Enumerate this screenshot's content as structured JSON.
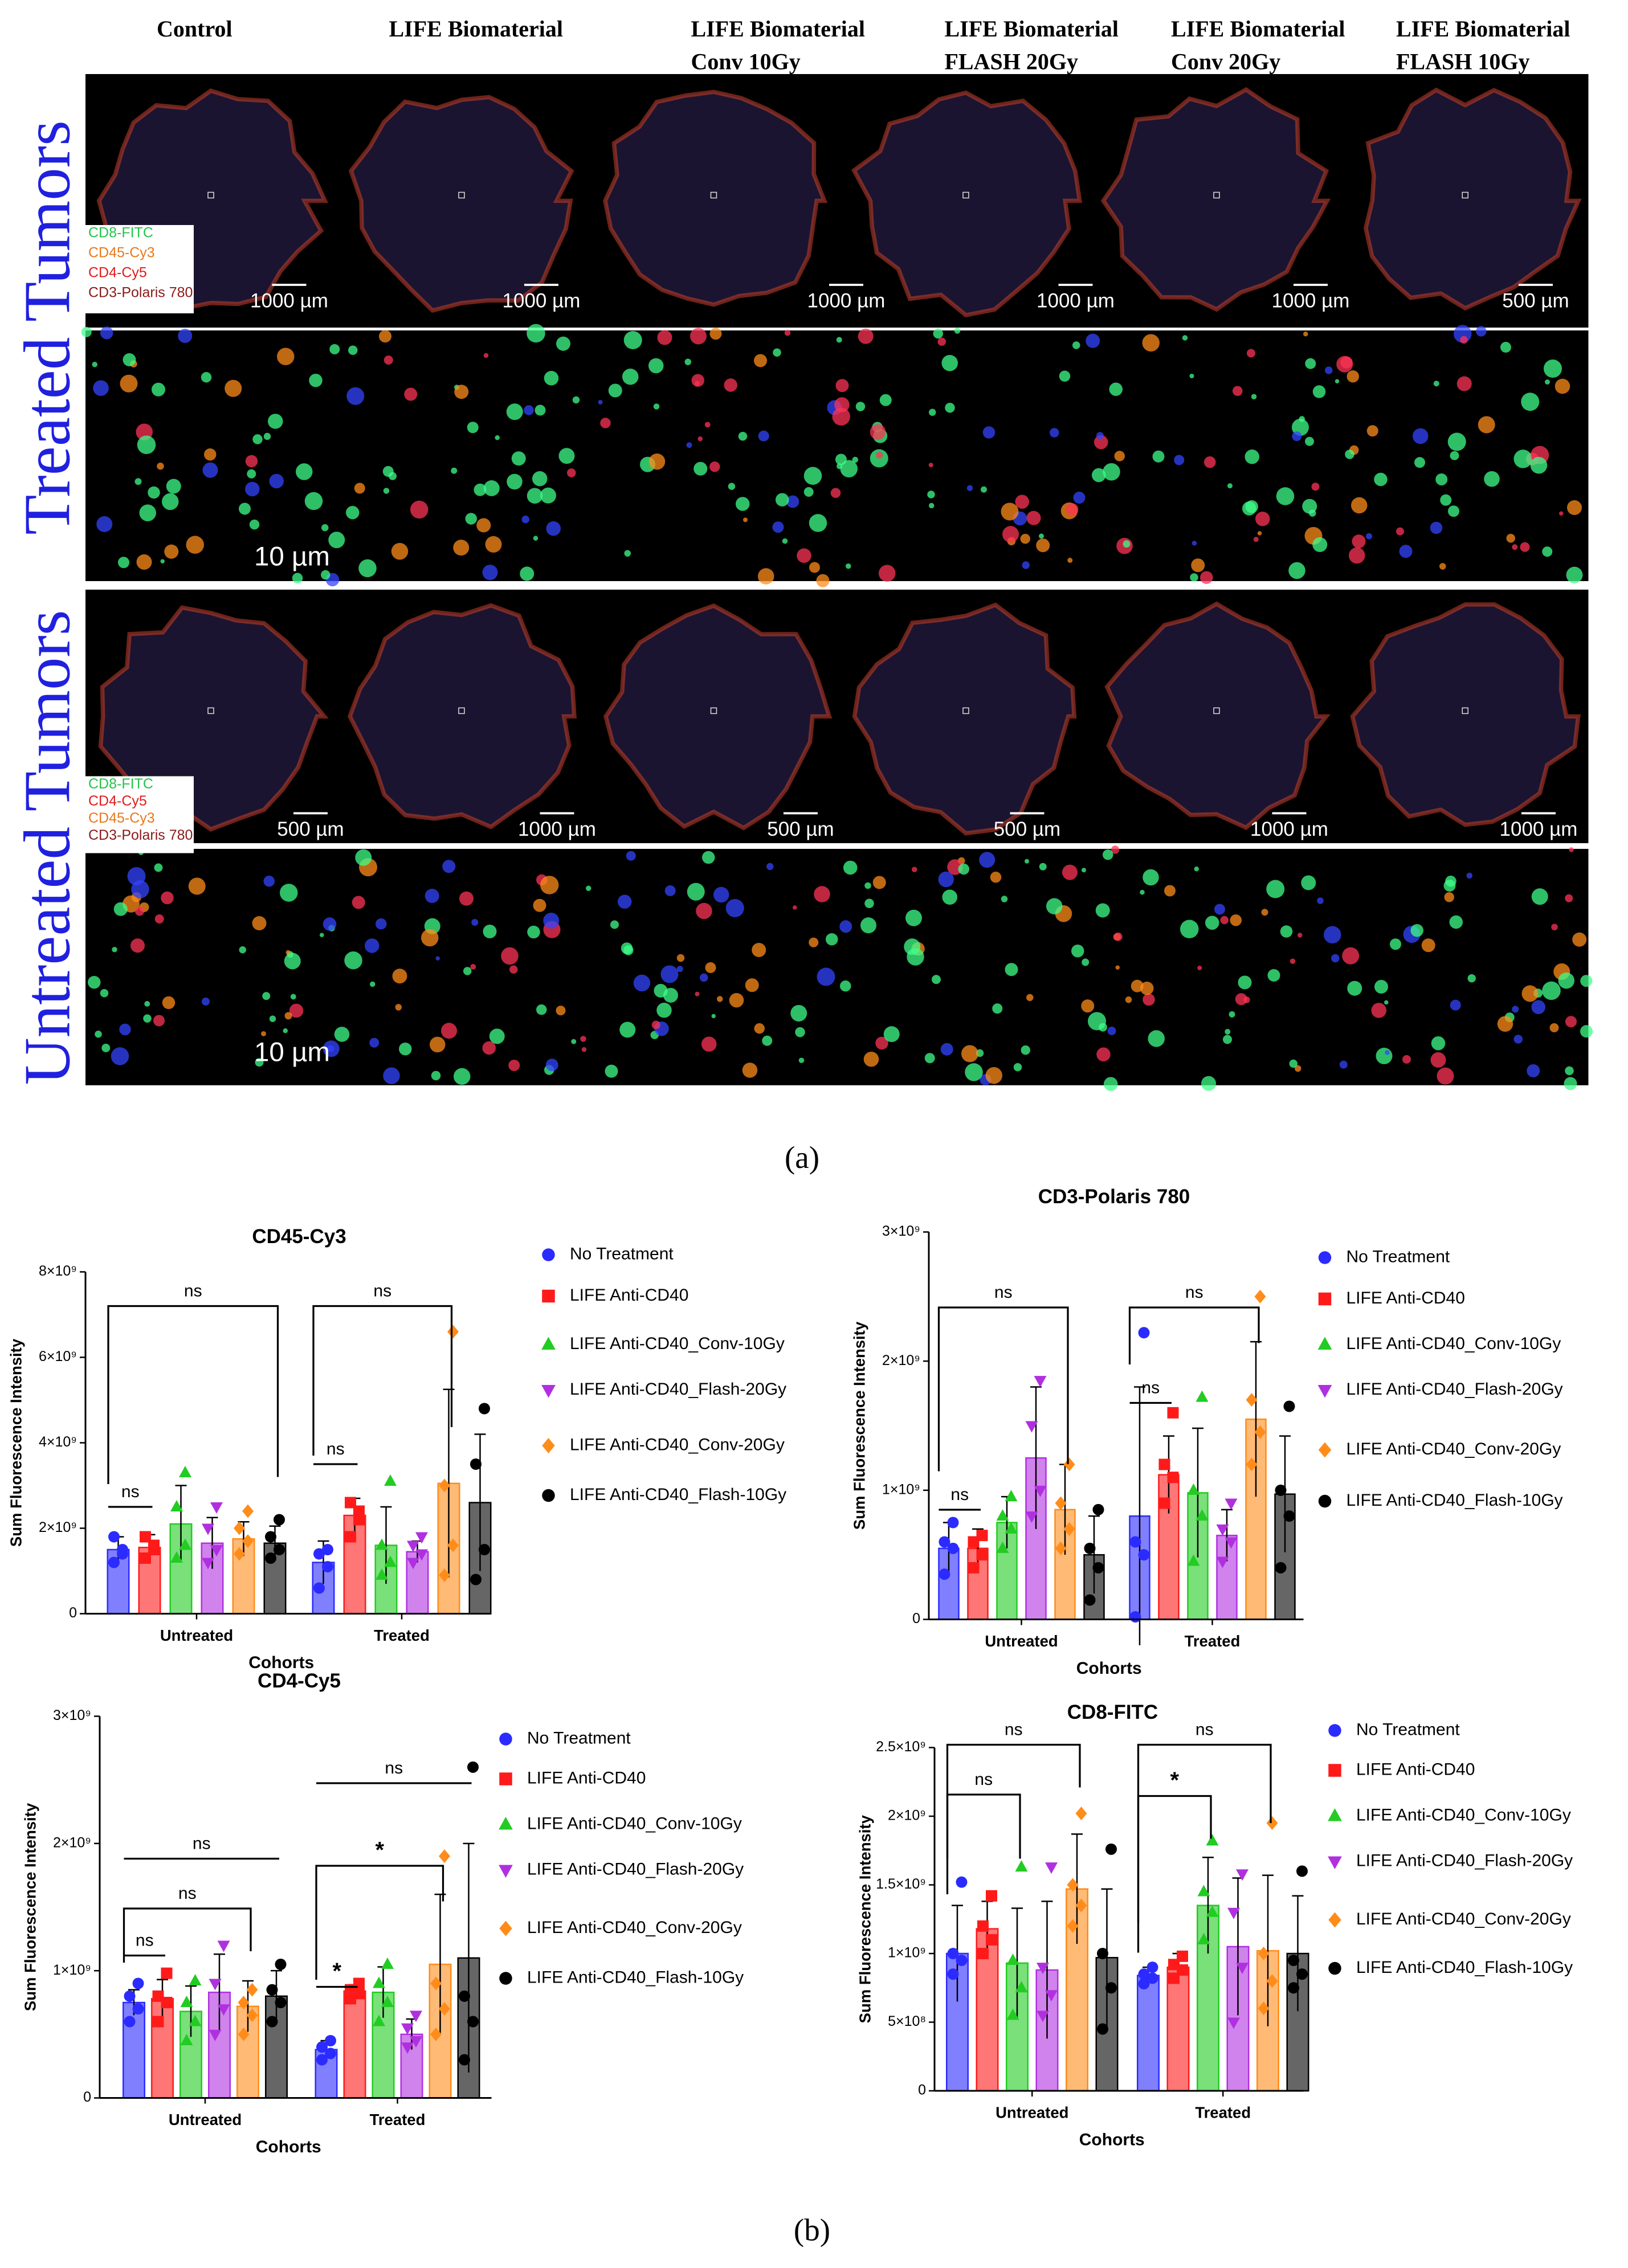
{
  "figure": {
    "columns": [
      [
        "Control"
      ],
      [
        "LIFE Biomaterial"
      ],
      [
        "LIFE Biomaterial",
        "Conv 10Gy"
      ],
      [
        "LIFE Biomaterial",
        "FLASH 20Gy"
      ],
      [
        "LIFE Biomaterial",
        "Conv 20Gy"
      ],
      [
        "LIFE Biomaterial",
        "FLASH 10Gy"
      ]
    ],
    "treated": {
      "label": "Treated Tumors",
      "scale_bars": [
        "1000 µm",
        "1000 µm",
        "1000 µm",
        "1000 µm",
        "1000 µm",
        "500 µm"
      ],
      "zoom_scale": "10 µm",
      "legend": [
        {
          "text": "CD8-FITC",
          "color": "#22c44a"
        },
        {
          "text": "CD45-Cy3",
          "color": "#e8791c"
        },
        {
          "text": "CD4-Cy5",
          "color": "#e01b1b"
        },
        {
          "text": "CD3-Polaris 780",
          "color": "#8b1a1a"
        }
      ]
    },
    "untreated": {
      "label": "Untreated Tumors",
      "scale_bars": [
        "500 µm",
        "1000 µm",
        "500 µm",
        "500 µm",
        "1000 µm",
        "1000 µm"
      ],
      "zoom_scale": "10 µm",
      "legend": [
        {
          "text": "CD8-FITC",
          "color": "#22c44a"
        },
        {
          "text": "CD4-Cy5",
          "color": "#e01b1b"
        },
        {
          "text": "CD45-Cy3",
          "color": "#e8791c"
        },
        {
          "text": "CD3-Polaris 780",
          "color": "#8b1a1a"
        }
      ]
    },
    "panel_a": "(a)",
    "panel_b": "(b)"
  },
  "chart_data": [
    {
      "type": "bar",
      "title": "CD45-Cy3",
      "y_label": "Sum Fluorescence Intensity",
      "x_label": "Cohorts",
      "categories": [
        "Untreated",
        "Treated"
      ],
      "ylim": [
        0,
        8000000000.0
      ],
      "yticks": [
        0,
        {
          "value": 2000000000.0,
          "label": "2×10⁹"
        },
        {
          "value": 4000000000.0,
          "label": "4×10⁹"
        },
        {
          "value": 6000000000.0,
          "label": "6×10⁹"
        },
        {
          "value": 8000000000.0,
          "label": "8×10⁹"
        }
      ],
      "annotations": [
        "ns",
        "ns",
        "ns",
        "ns"
      ],
      "series": [
        {
          "name": "No Treatment",
          "color": "#2b2bff",
          "marker": "circle",
          "values": [
            1500000000.0,
            1200000000.0
          ],
          "errors": [
            300000000.0,
            500000000.0
          ],
          "points": [
            [
              1200000000.0,
              1500000000.0,
              1800000000.0,
              1400000000.0
            ],
            [
              600000000.0,
              1100000000.0,
              1400000000.0,
              1500000000.0
            ]
          ]
        },
        {
          "name": "LIFE Anti-CD40",
          "color": "#ff1a1a",
          "marker": "square",
          "values": [
            1550000000.0,
            2300000000.0
          ],
          "errors": [
            300000000.0,
            400000000.0
          ],
          "points": [
            [
              1300000000.0,
              1500000000.0,
              1800000000.0,
              1600000000.0
            ],
            [
              1800000000.0,
              2200000000.0,
              2600000000.0,
              2400000000.0
            ]
          ]
        },
        {
          "name": "LIFE Anti-CD40_Conv-10Gy",
          "color": "#22cc22",
          "marker": "triangle",
          "values": [
            2100000000.0,
            1600000000.0
          ],
          "errors": [
            900000000.0,
            900000000.0
          ],
          "points": [
            [
              1300000000.0,
              1600000000.0,
              2500000000.0,
              3300000000.0
            ],
            [
              900000000.0,
              1200000000.0,
              1600000000.0,
              3100000000.0
            ]
          ]
        },
        {
          "name": "LIFE Anti-CD40_Flash-20Gy",
          "color": "#b030e0",
          "marker": "triangle-down",
          "values": [
            1650000000.0,
            1450000000.0
          ],
          "errors": [
            600000000.0,
            250000000.0
          ],
          "points": [
            [
              1200000000.0,
              1500000000.0,
              2000000000.0,
              2500000000.0
            ],
            [
              1200000000.0,
              1400000000.0,
              1600000000.0,
              1800000000.0
            ]
          ]
        },
        {
          "name": "LIFE Anti-CD40_Conv-20Gy",
          "color": "#ff8c1a",
          "marker": "diamond",
          "values": [
            1750000000.0,
            3050000000.0
          ],
          "errors": [
            400000000.0,
            2200000000.0
          ],
          "points": [
            [
              1400000000.0,
              1700000000.0,
              2000000000.0,
              2400000000.0
            ],
            [
              900000000.0,
              1600000000.0,
              3000000000.0,
              6600000000.0
            ]
          ]
        },
        {
          "name": "LIFE Anti-CD40_Flash-10Gy",
          "color": "#000000",
          "marker": "circle",
          "values": [
            1650000000.0,
            2600000000.0
          ],
          "errors": [
            400000000.0,
            1600000000.0
          ],
          "points": [
            [
              1300000000.0,
              1500000000.0,
              1800000000.0,
              2200000000.0
            ],
            [
              800000000.0,
              1500000000.0,
              3500000000.0,
              4800000000.0
            ]
          ]
        }
      ]
    },
    {
      "type": "bar",
      "title": "CD3-Polaris 780",
      "y_label": "Sum Fluorescence Intensity",
      "x_label": "Cohorts",
      "categories": [
        "Untreated",
        "Treated"
      ],
      "ylim": [
        0,
        3000000000.0
      ],
      "yticks": [
        0,
        {
          "value": 1000000000.0,
          "label": "1×10⁹"
        },
        {
          "value": 2000000000.0,
          "label": "2×10⁹"
        },
        {
          "value": 3000000000.0,
          "label": "3×10⁹"
        }
      ],
      "annotations": [
        "ns",
        "ns",
        "ns",
        "ns"
      ],
      "series": [
        {
          "name": "No Treatment",
          "color": "#2b2bff",
          "marker": "circle",
          "values": [
            550000000.0,
            800000000.0
          ],
          "errors": [
            200000000.0,
            1000000000.0
          ],
          "points": [
            [
              350000000.0,
              550000000.0,
              600000000.0,
              750000000.0
            ],
            [
              20000000.0,
              500000000.0,
              600000000.0,
              2220000000.0
            ]
          ]
        },
        {
          "name": "LIFE Anti-CD40",
          "color": "#ff1a1a",
          "marker": "square",
          "values": [
            550000000.0,
            1120000000.0
          ],
          "errors": [
            150000000.0,
            300000000.0
          ],
          "points": [
            [
              400000000.0,
              500000000.0,
              600000000.0,
              650000000.0
            ],
            [
              900000000.0,
              1100000000.0,
              1200000000.0,
              1600000000.0
            ]
          ]
        },
        {
          "name": "LIFE Anti-CD40_Conv-10Gy",
          "color": "#22cc22",
          "marker": "triangle",
          "values": [
            750000000.0,
            980000000.0
          ],
          "errors": [
            200000000.0,
            500000000.0
          ],
          "points": [
            [
              550000000.0,
              700000000.0,
              800000000.0,
              950000000.0
            ],
            [
              450000000.0,
              800000000.0,
              1000000000.0,
              1720000000.0
            ]
          ]
        },
        {
          "name": "LIFE Anti-CD40_Flash-20Gy",
          "color": "#b030e0",
          "marker": "triangle-down",
          "values": [
            1250000000.0,
            650000000.0
          ],
          "errors": [
            550000000.0,
            200000000.0
          ],
          "points": [
            [
              800000000.0,
              1000000000.0,
              1500000000.0,
              1850000000.0
            ],
            [
              450000000.0,
              600000000.0,
              700000000.0,
              900000000.0
            ]
          ]
        },
        {
          "name": "LIFE Anti-CD40_Conv-20Gy",
          "color": "#ff8c1a",
          "marker": "diamond",
          "values": [
            850000000.0,
            1550000000.0
          ],
          "errors": [
            350000000.0,
            600000000.0
          ],
          "points": [
            [
              550000000.0,
              700000000.0,
              900000000.0,
              1200000000.0
            ],
            [
              1200000000.0,
              1450000000.0,
              1700000000.0,
              2500000000.0
            ]
          ]
        },
        {
          "name": "LIFE Anti-CD40_Flash-10Gy",
          "color": "#000000",
          "marker": "circle",
          "values": [
            500000000.0,
            970000000.0
          ],
          "errors": [
            300000000.0,
            450000000.0
          ],
          "points": [
            [
              150000000.0,
              400000000.0,
              550000000.0,
              850000000.0
            ],
            [
              400000000.0,
              800000000.0,
              1000000000.0,
              1650000000.0
            ]
          ]
        }
      ]
    },
    {
      "type": "bar",
      "title": "CD4-Cy5",
      "y_label": "Sum Fluorescence Intensity",
      "x_label": "Cohorts",
      "categories": [
        "Untreated",
        "Treated"
      ],
      "ylim": [
        0,
        3000000000.0
      ],
      "yticks": [
        0,
        {
          "value": 1000000000.0,
          "label": "1×10⁹"
        },
        {
          "value": 2000000000.0,
          "label": "2×10⁹"
        },
        {
          "value": 3000000000.0,
          "label": "3×10⁹"
        }
      ],
      "annotations": [
        "ns",
        "ns",
        "ns",
        "*",
        "*",
        "ns"
      ],
      "series": [
        {
          "name": "No Treatment",
          "color": "#2b2bff",
          "marker": "circle",
          "values": [
            750000000.0,
            380000000.0
          ],
          "errors": [
            100000000.0,
            70000000.0
          ],
          "points": [
            [
              600000000.0,
              700000000.0,
              800000000.0,
              900000000.0
            ],
            [
              300000000.0,
              350000000.0,
              400000000.0,
              450000000.0
            ]
          ]
        },
        {
          "name": "LIFE Anti-CD40",
          "color": "#ff1a1a",
          "marker": "square",
          "values": [
            780000000.0,
            840000000.0
          ],
          "errors": [
            150000000.0,
            50000000.0
          ],
          "points": [
            [
              600000000.0,
              750000000.0,
              800000000.0,
              980000000.0
            ],
            [
              780000000.0,
              820000000.0,
              850000000.0,
              900000000.0
            ]
          ]
        },
        {
          "name": "LIFE Anti-CD40_Conv-10Gy",
          "color": "#22cc22",
          "marker": "triangle",
          "values": [
            680000000.0,
            830000000.0
          ],
          "errors": [
            200000000.0,
            200000000.0
          ],
          "points": [
            [
              450000000.0,
              600000000.0,
              750000000.0,
              920000000.0
            ],
            [
              600000000.0,
              750000000.0,
              900000000.0,
              1050000000.0
            ]
          ]
        },
        {
          "name": "LIFE Anti-CD40_Flash-20Gy",
          "color": "#b030e0",
          "marker": "triangle-down",
          "values": [
            830000000.0,
            500000000.0
          ],
          "errors": [
            300000000.0,
            120000000.0
          ],
          "points": [
            [
              500000000.0,
              700000000.0,
              900000000.0,
              1200000000.0
            ],
            [
              400000000.0,
              450000000.0,
              550000000.0,
              650000000.0
            ]
          ]
        },
        {
          "name": "LIFE Anti-CD40_Conv-20Gy",
          "color": "#ff8c1a",
          "marker": "diamond",
          "values": [
            720000000.0,
            1050000000.0
          ],
          "errors": [
            200000000.0,
            550000000.0
          ],
          "points": [
            [
              500000000.0,
              650000000.0,
              750000000.0,
              850000000.0
            ],
            [
              500000000.0,
              700000000.0,
              900000000.0,
              1900000000.0
            ]
          ]
        },
        {
          "name": "LIFE Anti-CD40_Flash-10Gy",
          "color": "#000000",
          "marker": "circle",
          "values": [
            800000000.0,
            1100000000.0
          ],
          "errors": [
            200000000.0,
            900000000.0
          ],
          "points": [
            [
              600000000.0,
              750000000.0,
              850000000.0,
              1050000000.0
            ],
            [
              300000000.0,
              600000000.0,
              800000000.0,
              2600000000.0
            ]
          ]
        }
      ]
    },
    {
      "type": "bar",
      "title": "CD8-FITC",
      "y_label": "Sum Fluorescence Intensity",
      "x_label": "Cohorts",
      "categories": [
        "Untreated",
        "Treated"
      ],
      "ylim": [
        0,
        2500000000.0
      ],
      "yticks": [
        0,
        {
          "value": 500000000.0,
          "label": "5×10⁸"
        },
        {
          "value": 1000000000.0,
          "label": "1×10⁹"
        },
        {
          "value": 1500000000.0,
          "label": "1.5×10⁹"
        },
        {
          "value": 2000000000.0,
          "label": "2×10⁹"
        },
        {
          "value": 2500000000.0,
          "label": "2.5×10⁹"
        }
      ],
      "annotations": [
        "ns",
        "ns",
        "*",
        "ns"
      ],
      "series": [
        {
          "name": "No Treatment",
          "color": "#2b2bff",
          "marker": "circle",
          "values": [
            1000000000.0,
            840000000.0
          ],
          "errors": [
            350000000.0,
            60000000.0
          ],
          "points": [
            [
              850000000.0,
              950000000.0,
              1000000000.0,
              1520000000.0
            ],
            [
              780000000.0,
              820000000.0,
              850000000.0,
              900000000.0
            ]
          ]
        },
        {
          "name": "LIFE Anti-CD40",
          "color": "#ff1a1a",
          "marker": "square",
          "values": [
            1180000000.0,
            900000000.0
          ],
          "errors": [
            200000000.0,
            100000000.0
          ],
          "points": [
            [
              1000000000.0,
              1100000000.0,
              1200000000.0,
              1420000000.0
            ],
            [
              820000000.0,
              880000000.0,
              920000000.0,
              980000000.0
            ]
          ]
        },
        {
          "name": "LIFE Anti-CD40_Conv-10Gy",
          "color": "#22cc22",
          "marker": "triangle",
          "values": [
            930000000.0,
            1350000000.0
          ],
          "errors": [
            400000000.0,
            350000000.0
          ],
          "points": [
            [
              550000000.0,
              750000000.0,
              950000000.0,
              1630000000.0
            ],
            [
              1100000000.0,
              1300000000.0,
              1450000000.0,
              1820000000.0
            ]
          ]
        },
        {
          "name": "LIFE Anti-CD40_Flash-20Gy",
          "color": "#b030e0",
          "marker": "triangle-down",
          "values": [
            880000000.0,
            1050000000.0
          ],
          "errors": [
            500000000.0,
            500000000.0
          ],
          "points": [
            [
              550000000.0,
              700000000.0,
              900000000.0,
              1630000000.0
            ],
            [
              500000000.0,
              900000000.0,
              1300000000.0,
              1580000000.0
            ]
          ]
        },
        {
          "name": "LIFE Anti-CD40_Conv-20Gy",
          "color": "#ff8c1a",
          "marker": "diamond",
          "values": [
            1470000000.0,
            1020000000.0
          ],
          "errors": [
            400000000.0,
            550000000.0
          ],
          "points": [
            [
              1200000000.0,
              1350000000.0,
              1500000000.0,
              2020000000.0
            ],
            [
              600000000.0,
              800000000.0,
              1000000000.0,
              1950000000.0
            ]
          ]
        },
        {
          "name": "LIFE Anti-CD40_Flash-10Gy",
          "color": "#000000",
          "marker": "circle",
          "values": [
            970000000.0,
            1000000000.0
          ],
          "errors": [
            500000000.0,
            420000000.0
          ],
          "points": [
            [
              450000000.0,
              750000000.0,
              1000000000.0,
              1760000000.0
            ],
            [
              750000000.0,
              850000000.0,
              950000000.0,
              1600000000.0
            ]
          ]
        }
      ]
    }
  ]
}
